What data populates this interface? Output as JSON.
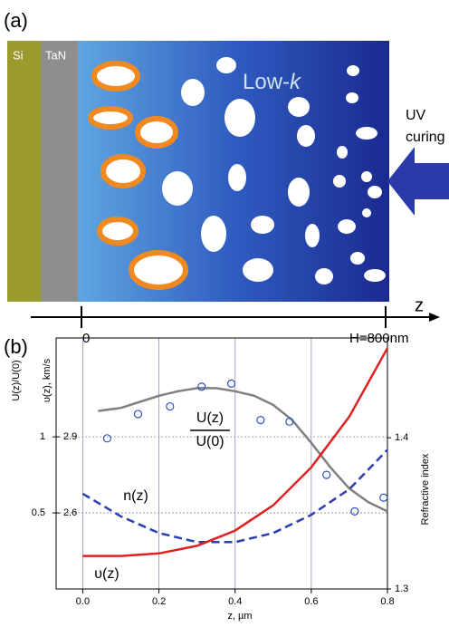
{
  "panel_a": {
    "label": "(a)",
    "layer_1": "Si",
    "layer_2": "TaN",
    "material": "Low-",
    "material_italic": "k",
    "uv": "UV",
    "curing": "curing",
    "axis": "z",
    "start": "0",
    "end": "H=800nm"
  },
  "chart_data": {
    "type": "line",
    "label": "(b)",
    "xlabel": "z, µm",
    "xlim": [
      -0.07,
      0.8
    ],
    "xticks": [
      {
        "value": 0,
        "label": "0.0"
      },
      0.2,
      0.4,
      0.6,
      0.8
    ],
    "ylabel": "U(z)/U(0)",
    "ylim": [
      0,
      1.65
    ],
    "yticks": [
      0.5,
      1
    ],
    "y3label": "υ(z), km/s",
    "y3lim": [
      2.3,
      3.29
    ],
    "y3ticks": [
      2.6,
      2.9
    ],
    "y2label": "Refractive index",
    "y2lim": [
      1.3,
      1.466
    ],
    "y2ticks": [
      1.3,
      1.4
    ],
    "grid": true,
    "series": [
      {
        "color": "#808080",
        "x": [
          0.04,
          0.1,
          0.15,
          0.2,
          0.25,
          0.3,
          0.35,
          0.4,
          0.45,
          0.5,
          0.55,
          0.6,
          0.65,
          0.7,
          0.75,
          0.8
        ],
        "values": [
          1.17,
          1.19,
          1.23,
          1.27,
          1.3,
          1.32,
          1.32,
          1.3,
          1.27,
          1.21,
          1.11,
          0.96,
          0.8,
          0.66,
          0.57,
          0.51
        ]
      },
      {
        "color": "#2a3fb0",
        "dash": true,
        "axis": "y2",
        "x": [
          0,
          0.1,
          0.2,
          0.3,
          0.4,
          0.5,
          0.6,
          0.7,
          0.8
        ],
        "values": [
          1.363,
          1.348,
          1.337,
          1.331,
          1.331,
          1.337,
          1.349,
          1.366,
          1.392
        ]
      },
      {
        "color": "#e02020",
        "axis": "y3",
        "x": [
          0,
          0.1,
          0.2,
          0.3,
          0.4,
          0.5,
          0.6,
          0.7,
          0.8
        ],
        "values": [
          2.43,
          2.43,
          2.44,
          2.47,
          2.53,
          2.63,
          2.78,
          2.98,
          3.25
        ]
      },
      {
        "type": "scatter",
        "color": "#3050c0",
        "x": [
          0.064,
          0.145,
          0.229,
          0.312,
          0.39,
          0.467,
          0.543,
          0.64,
          0.714,
          0.79
        ],
        "values": [
          0.99,
          1.15,
          1.2,
          1.33,
          1.35,
          1.11,
          1.1,
          0.75,
          0.51,
          0.6
        ]
      }
    ],
    "annotations": [
      "U(z)",
      "U(0)",
      "n(z)",
      "υ(z)"
    ]
  }
}
